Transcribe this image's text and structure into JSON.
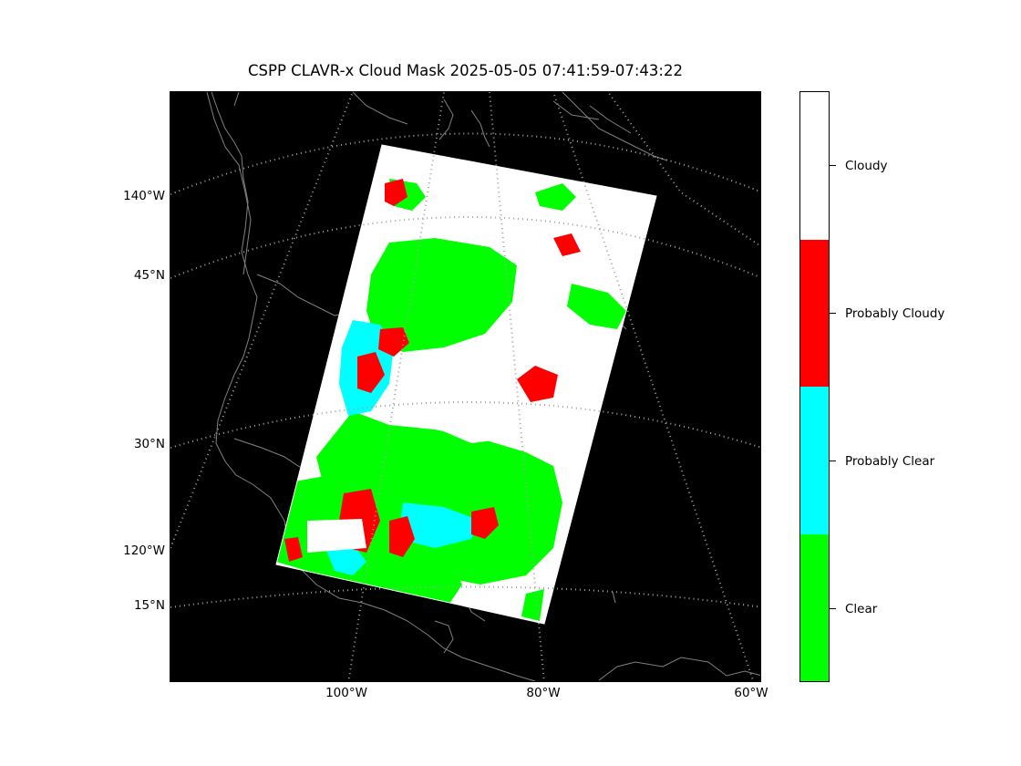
{
  "title": "CSPP CLAVR-x Cloud Mask 2025-05-05 07:41:59-07:43:22",
  "map": {
    "background_color": "#000000",
    "coastline_color": "#808080",
    "gridline_style": "dotted",
    "lat_labels": [
      "140°W",
      "45°N",
      "30°N",
      "120°W",
      "15°N"
    ],
    "lon_labels": [
      "100°W",
      "80°W",
      "60°W"
    ]
  },
  "legend": {
    "type": "colorbar",
    "categories": [
      {
        "label": "Cloudy",
        "color": "#ffffff"
      },
      {
        "label": "Probably Cloudy",
        "color": "#ff0000"
      },
      {
        "label": "Probably Clear",
        "color": "#00ffff"
      },
      {
        "label": "Clear",
        "color": "#00ff00"
      }
    ]
  }
}
